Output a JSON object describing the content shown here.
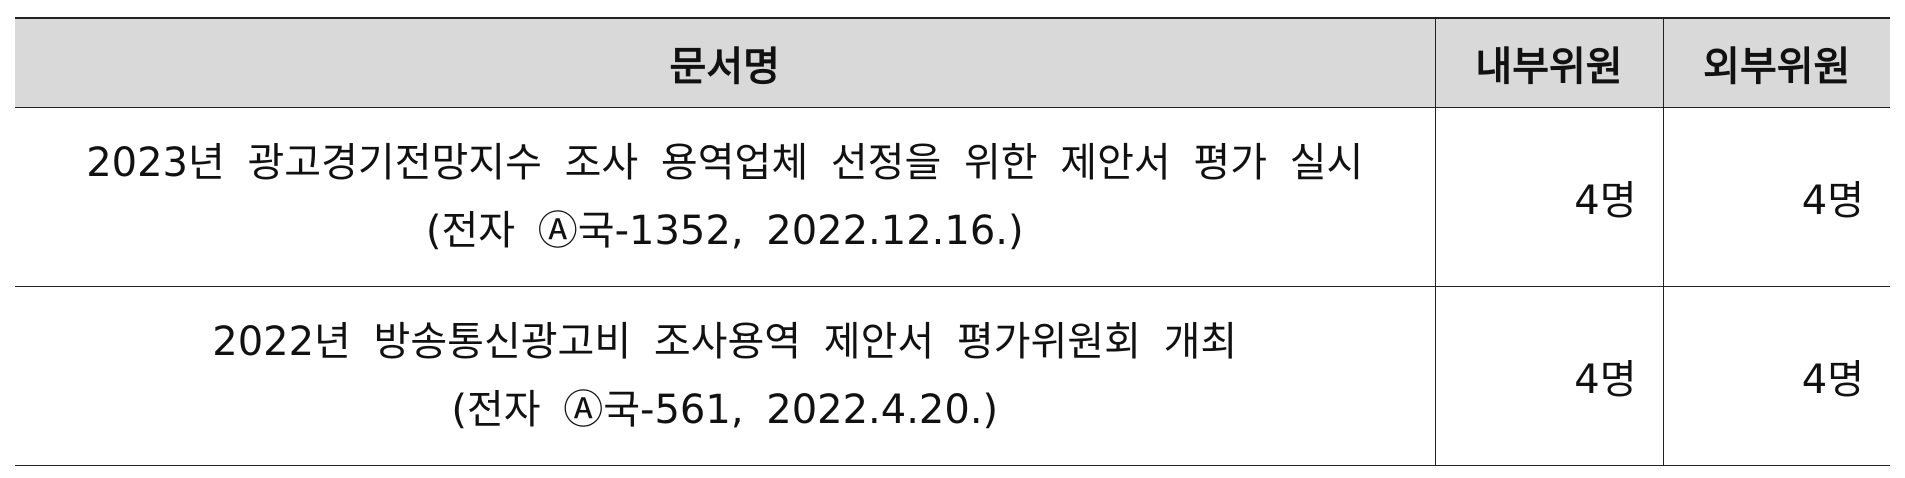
{
  "table": {
    "headers": {
      "title": "문서명",
      "internal": "내부위원",
      "external": "외부위원"
    },
    "rows": [
      {
        "title_line1": "2023년 광고경기전망지수 조사 용역업체 선정을 위한 제안서 평가 실시",
        "title_line2": "(전자 Ⓐ국-1352, 2022.12.16.)",
        "internal": "4명",
        "external": "4명"
      },
      {
        "title_line1": "2022년 방송통신광고비 조사용역 제안서 평가위원회 개최",
        "title_line2": "(전자 Ⓐ국-561, 2022.4.20.)",
        "internal": "4명",
        "external": "4명"
      }
    ]
  }
}
